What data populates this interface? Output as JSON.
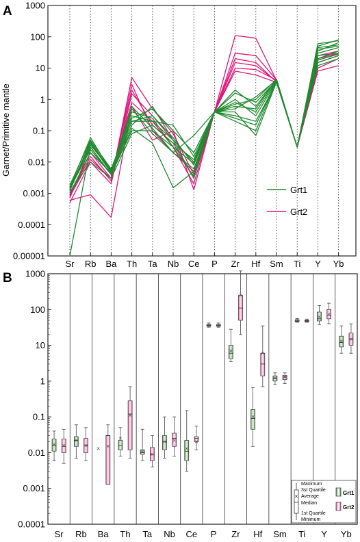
{
  "panels": {
    "a_letter": "A",
    "b_letter": "B"
  },
  "colors": {
    "grt1": "#1f8a2e",
    "grt2": "#e0147a",
    "grt1_box": "#4f9a46",
    "grt2_box": "#e8559a"
  },
  "chart_data": [
    {
      "type": "line",
      "panel": "A",
      "ylabel": "Garnet/Primitive mantle",
      "yscale": "log",
      "ylim": [
        1e-05,
        1000
      ],
      "y_ticks": [
        "1000",
        "100",
        "10",
        "1",
        "0.1",
        "0.01",
        "0.001",
        "0.0001",
        "0.00001"
      ],
      "categories": [
        "Sr",
        "Rb",
        "Ba",
        "Th",
        "Ta",
        "Nb",
        "Ce",
        "P",
        "Zr",
        "Hf",
        "Sm",
        "Ti",
        "Y",
        "Yb"
      ],
      "legend": [
        {
          "name": "Grt1",
          "color": "#1f8a2e"
        },
        {
          "name": "Grt2",
          "color": "#e0147a"
        }
      ],
      "legend_position": "lower-right",
      "grid": "vertical dotted lines at each element",
      "series": [
        {
          "name": "Grt1",
          "values": [
            0.0015,
            0.03,
            0.004,
            0.1,
            0.1,
            0.03,
            0.0035,
            0.4,
            1.6,
            0.8,
            4.0,
            0.03,
            45,
            55
          ]
        },
        {
          "name": "Grt1",
          "values": [
            0.0012,
            0.04,
            0.005,
            0.2,
            0.3,
            0.06,
            0.008,
            0.4,
            0.5,
            1.2,
            4.2,
            0.03,
            30,
            45
          ]
        },
        {
          "name": "Grt1",
          "values": [
            0.001,
            0.02,
            0.0045,
            0.15,
            0.6,
            0.05,
            0.01,
            0.4,
            1.0,
            0.3,
            3.8,
            0.03,
            20,
            35
          ]
        },
        {
          "name": "Grt1",
          "values": [
            0.0018,
            0.05,
            0.006,
            0.3,
            0.2,
            0.15,
            0.015,
            0.4,
            0.6,
            0.5,
            4.5,
            0.03,
            60,
            75
          ]
        },
        {
          "name": "Grt1",
          "values": [
            0.0016,
            0.06,
            0.005,
            0.5,
            0.08,
            0.02,
            0.006,
            0.4,
            0.3,
            0.2,
            3.5,
            0.03,
            25,
            30
          ]
        },
        {
          "name": "Grt1",
          "values": [
            0.0011,
            0.01,
            0.003,
            0.08,
            0.15,
            0.04,
            0.012,
            0.4,
            0.2,
            0.1,
            4.0,
            0.03,
            15,
            25
          ]
        },
        {
          "name": "Grt1",
          "values": [
            0.0013,
            0.035,
            0.0055,
            0.25,
            0.5,
            0.1,
            0.02,
            0.4,
            2.0,
            0.6,
            4.3,
            0.03,
            35,
            65
          ]
        },
        {
          "name": "Grt1",
          "values": [
            0.0014,
            0.025,
            0.004,
            0.12,
            0.04,
            0.0015,
            0.005,
            0.4,
            0.4,
            0.07,
            3.6,
            0.03,
            12,
            20
          ]
        },
        {
          "name": "Grt1",
          "values": [
            0.0012,
            0.045,
            0.005,
            0.4,
            0.25,
            0.03,
            0.009,
            0.4,
            0.8,
            0.4,
            4.1,
            0.03,
            40,
            50
          ]
        },
        {
          "name": "Grt1",
          "values": [
            1e-05,
            0.03,
            0.004,
            0.2,
            0.2,
            0.05,
            0.003,
            0.4,
            0.25,
            0.15,
            3.9,
            0.03,
            18,
            28
          ]
        },
        {
          "name": "Grt1",
          "values": [
            0.0015,
            0.04,
            0.0045,
            0.6,
            0.12,
            0.02,
            0.07,
            0.4,
            0.7,
            1.0,
            4.4,
            0.03,
            50,
            80
          ]
        },
        {
          "name": "Grt2",
          "values": [
            0.0005,
            0.01,
            0.002,
            1.5,
            0.3,
            0.05,
            0.01,
            0.4,
            110,
            90,
            4.0,
            0.03,
            20,
            30
          ]
        },
        {
          "name": "Grt2",
          "values": [
            0.0008,
            0.02,
            0.003,
            3.0,
            0.1,
            0.02,
            0.005,
            0.4,
            30,
            25,
            4.2,
            0.03,
            25,
            35
          ]
        },
        {
          "name": "Grt2",
          "values": [
            0.0009,
            0.015,
            0.0025,
            5.0,
            0.5,
            0.08,
            0.004,
            0.4,
            15,
            12,
            3.8,
            0.03,
            10,
            20
          ]
        },
        {
          "name": "Grt2",
          "values": [
            0.0007,
            0.03,
            0.004,
            0.8,
            0.2,
            0.03,
            0.002,
            0.4,
            8,
            6,
            3.5,
            0.03,
            15,
            25
          ]
        },
        {
          "name": "Grt2",
          "values": [
            0.0006,
            0.0009,
            0.00017,
            0.6,
            0.05,
            0.1,
            0.0013,
            0.4,
            20,
            15,
            3.6,
            0.03,
            8,
            12
          ]
        },
        {
          "name": "Grt2",
          "values": [
            0.0008,
            0.012,
            0.003,
            2.0,
            0.15,
            0.04,
            0.003,
            0.4,
            10,
            9,
            4.1,
            0.03,
            18,
            28
          ]
        }
      ]
    },
    {
      "type": "box",
      "panel": "B",
      "yscale": "log",
      "ylim": [
        0.0001,
        1000
      ],
      "y_ticks": [
        "1000",
        "100",
        "10",
        "1",
        "0.1",
        "0.01",
        "0.001",
        "0.0001"
      ],
      "categories": [
        "Sr",
        "Rb",
        "Ba",
        "Th",
        "Ta",
        "Nb",
        "Ce",
        "P",
        "Zr",
        "Hf",
        "Sm",
        "Ti",
        "Y",
        "Yb"
      ],
      "series": [
        {
          "name": "Grt1",
          "boxes": [
            {
              "min": 0.006,
              "q1": 0.011,
              "median": 0.016,
              "q3": 0.024,
              "max": 0.04,
              "mean": 0.017
            },
            {
              "min": 0.007,
              "q1": 0.015,
              "median": 0.022,
              "q3": 0.028,
              "max": 0.06,
              "mean": 0.022
            },
            {
              "min": null,
              "q1": null,
              "median": null,
              "q3": null,
              "max": null,
              "mean": 0.013
            },
            {
              "min": 0.008,
              "q1": 0.012,
              "median": 0.016,
              "q3": 0.022,
              "max": 0.05,
              "mean": 0.025
            },
            {
              "min": 0.006,
              "q1": 0.009,
              "median": 0.01,
              "q3": 0.012,
              "max": 0.045,
              "mean": 0.011
            },
            {
              "min": 0.007,
              "q1": 0.012,
              "median": 0.02,
              "q3": 0.03,
              "max": 0.1,
              "mean": 0.02
            },
            {
              "min": 0.003,
              "q1": 0.006,
              "median": 0.011,
              "q3": 0.022,
              "max": 0.15,
              "mean": 0.013
            },
            {
              "min": 32,
              "q1": 34,
              "median": 36,
              "q3": 38,
              "max": 42,
              "mean": 36
            },
            {
              "min": 3.5,
              "q1": 4.2,
              "median": 6.0,
              "q3": 10,
              "max": 28,
              "mean": 7
            },
            {
              "min": 0.015,
              "q1": 0.045,
              "median": 0.09,
              "q3": 0.16,
              "max": 0.65,
              "mean": 0.1
            },
            {
              "min": 0.8,
              "q1": 1.0,
              "median": 1.2,
              "q3": 1.4,
              "max": 1.7,
              "mean": 1.2
            },
            {
              "min": 44,
              "q1": 46,
              "median": 48,
              "q3": 52,
              "max": 56,
              "mean": 49
            },
            {
              "min": 38,
              "q1": 48,
              "median": 55,
              "q3": 85,
              "max": 130,
              "mean": 62
            },
            {
              "min": 6,
              "q1": 9,
              "median": 12,
              "q3": 18,
              "max": 35,
              "mean": 13
            }
          ]
        },
        {
          "name": "Grt2",
          "boxes": [
            {
              "min": 0.005,
              "q1": 0.01,
              "median": 0.015,
              "q3": 0.024,
              "max": 0.045,
              "mean": 0.016
            },
            {
              "min": 0.006,
              "q1": 0.01,
              "median": 0.016,
              "q3": 0.025,
              "max": 0.05,
              "mean": 0.016
            },
            {
              "min": 0.0013,
              "q1": 0.0013,
              "median": 0.03,
              "q3": 0.03,
              "max": 0.06,
              "mean": 0.015
            },
            {
              "min": 0.007,
              "q1": 0.012,
              "median": 0.12,
              "q3": 0.28,
              "max": 0.7,
              "mean": 0.11
            },
            {
              "min": 0.004,
              "q1": 0.006,
              "median": 0.009,
              "q3": 0.014,
              "max": 0.03,
              "mean": 0.009
            },
            {
              "min": 0.008,
              "q1": 0.015,
              "median": 0.025,
              "q3": 0.035,
              "max": 0.1,
              "mean": 0.022
            },
            {
              "min": 0.012,
              "q1": 0.02,
              "median": 0.025,
              "q3": 0.028,
              "max": 0.055,
              "mean": 0.02
            },
            {
              "min": 32,
              "q1": 34,
              "median": 36,
              "q3": 38,
              "max": 42,
              "mean": 36
            },
            {
              "min": 20,
              "q1": 50,
              "median": 110,
              "q3": 250,
              "max": 1200,
              "mean": 250
            },
            {
              "min": 0.7,
              "q1": 1.4,
              "median": 3.0,
              "q3": 6.0,
              "max": 35,
              "mean": 6
            },
            {
              "min": 0.85,
              "q1": 1.1,
              "median": 1.3,
              "q3": 1.45,
              "max": 1.7,
              "mean": 1.3
            },
            {
              "min": 44,
              "q1": 46,
              "median": 48,
              "q3": 50,
              "max": 54,
              "mean": 48
            },
            {
              "min": 40,
              "q1": 55,
              "median": 70,
              "q3": 100,
              "max": 150,
              "mean": 72
            },
            {
              "min": 6,
              "q1": 10,
              "median": 15,
              "q3": 22,
              "max": 40,
              "mean": 15
            }
          ]
        }
      ],
      "legend": {
        "stat_labels": [
          "Maximum",
          "3st Quartile",
          "Average",
          "Median",
          "1st Quartile",
          "Minimum"
        ],
        "entries": [
          {
            "name": "Grt1",
            "color": "#4f9a46"
          },
          {
            "name": "Grt2",
            "color": "#e8559a"
          }
        ],
        "position": "lower-right"
      }
    }
  ]
}
